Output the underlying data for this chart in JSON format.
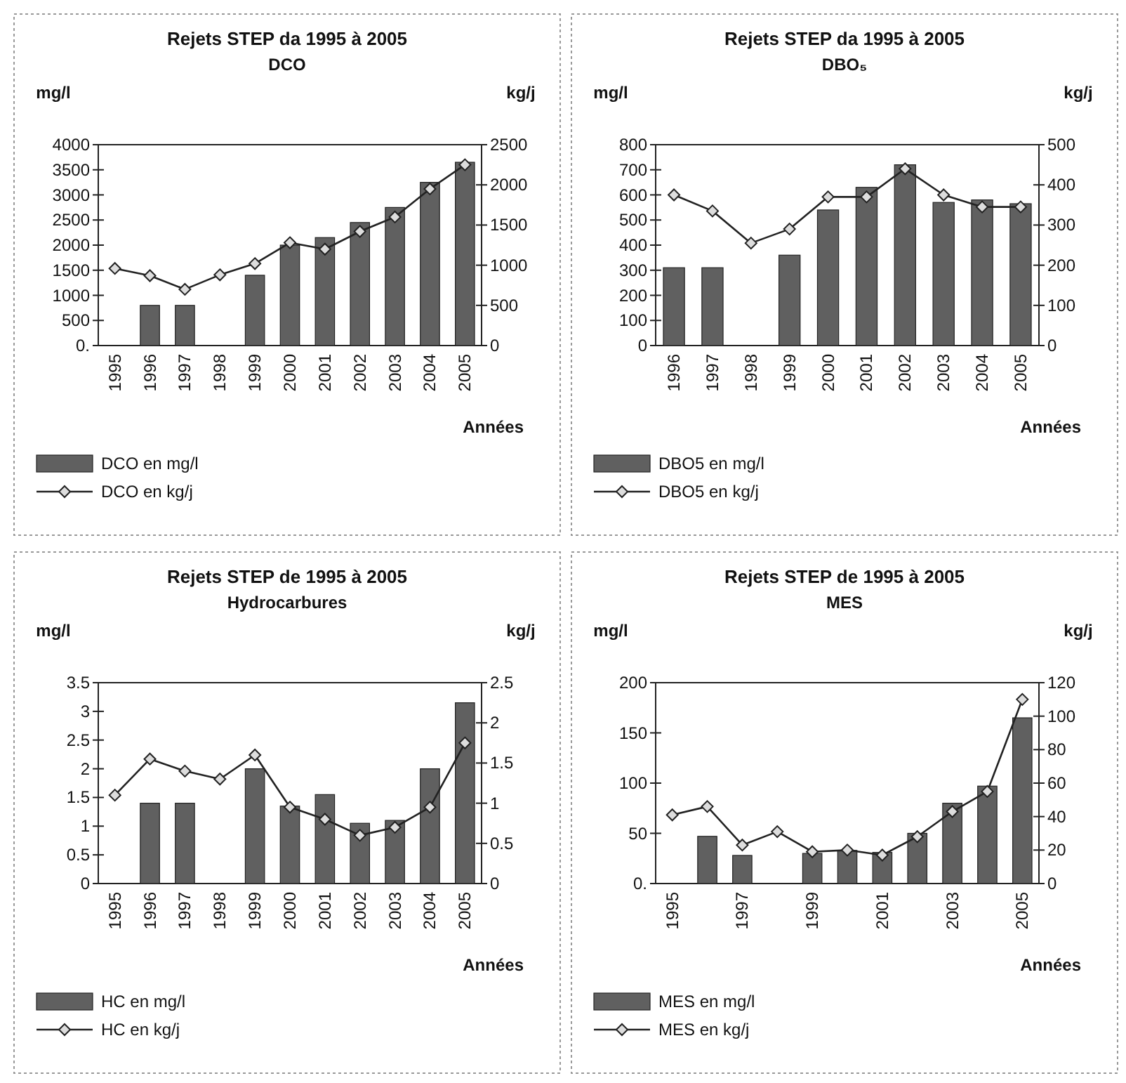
{
  "chart_data": [
    {
      "type": "bar",
      "title": "Rejets STEP da 1995 à 2005",
      "subtitle": "DCO",
      "xlabel": "Années",
      "ylabel": "mg/l",
      "y2label": "kg/j",
      "categories": [
        "1995",
        "1996",
        "1997",
        "1998",
        "1999",
        "2000",
        "2001",
        "2002",
        "2003",
        "2004",
        "2005"
      ],
      "ylim": [
        0,
        4000
      ],
      "yticks": [
        {
          "value": 0,
          "label": "0."
        },
        500,
        1000,
        1500,
        2000,
        2500,
        3000,
        3500,
        4000
      ],
      "y2lim": [
        0,
        2500
      ],
      "y2ticks": [
        0,
        500,
        1000,
        1500,
        2000,
        2500
      ],
      "legend": "bottom left",
      "marker": "diamond",
      "series": [
        {
          "name": "DCO en mg/l",
          "color": "#606060",
          "values": [
            null,
            800,
            800,
            null,
            1400,
            2000,
            2150,
            2450,
            2750,
            3250,
            3650
          ]
        },
        {
          "name": "DCO en kg/j",
          "type": "line",
          "axis": "y2",
          "color": "#222222",
          "values": [
            960,
            870,
            700,
            880,
            1020,
            1280,
            1200,
            1420,
            1600,
            1950,
            2250
          ]
        }
      ]
    },
    {
      "type": "bar",
      "title": "Rejets STEP da 1995 à 2005",
      "subtitle": "DBO₅",
      "xlabel": "Années",
      "ylabel": "mg/l",
      "y2label": "kg/j",
      "categories": [
        "1996",
        "1997",
        "1998",
        "1999",
        "2000",
        "2001",
        "2002",
        "2003",
        "2004",
        "2005"
      ],
      "ylim": [
        0,
        800
      ],
      "yticks": [
        0,
        100,
        200,
        300,
        400,
        500,
        600,
        700,
        800
      ],
      "y2lim": [
        0,
        500
      ],
      "y2ticks": [
        0,
        100,
        200,
        300,
        400,
        500
      ],
      "legend": "bottom left",
      "marker": "diamond",
      "series": [
        {
          "name": "DBO5 en mg/l",
          "color": "#606060",
          "values": [
            310,
            310,
            null,
            360,
            540,
            630,
            720,
            570,
            580,
            565
          ]
        },
        {
          "name": "DBO5 en kg/j",
          "type": "line",
          "axis": "y2",
          "color": "#222222",
          "values": [
            375,
            335,
            255,
            290,
            370,
            370,
            440,
            375,
            345,
            345
          ]
        }
      ]
    },
    {
      "type": "bar",
      "title": "Rejets STEP de 1995 à 2005",
      "subtitle": "Hydrocarbures",
      "xlabel": "Années",
      "ylabel": "mg/l",
      "y2label": "kg/j",
      "categories": [
        "1995",
        "1996",
        "1997",
        "1998",
        "1999",
        "2000",
        "2001",
        "2002",
        "2003",
        "2004",
        "2005"
      ],
      "ylim": [
        0,
        3.5
      ],
      "yticks": [
        0,
        0.5,
        1,
        1.5,
        2,
        2.5,
        3,
        3.5
      ],
      "y2lim": [
        0,
        2.5
      ],
      "y2ticks": [
        0,
        0.5,
        1,
        1.5,
        2,
        2.5
      ],
      "legend": "bottom left",
      "marker": "diamond",
      "series": [
        {
          "name": "HC en mg/l",
          "color": "#606060",
          "values": [
            null,
            1.4,
            1.4,
            null,
            2.0,
            1.35,
            1.55,
            1.05,
            1.1,
            2.0,
            3.15
          ]
        },
        {
          "name": "HC en kg/j",
          "type": "line",
          "axis": "y2",
          "color": "#222222",
          "values": [
            1.1,
            1.55,
            1.4,
            1.3,
            1.6,
            0.95,
            0.8,
            0.6,
            0.7,
            0.95,
            1.75
          ]
        }
      ]
    },
    {
      "type": "bar",
      "title": "Rejets STEP de 1995 à 2005",
      "subtitle": "MES",
      "xlabel": "Années",
      "ylabel": "mg/l",
      "y2label": "kg/j",
      "categories": [
        "1995",
        null,
        "1997",
        null,
        "1999",
        null,
        "2001",
        null,
        "2003",
        null,
        "2005"
      ],
      "ylim": [
        0,
        200
      ],
      "yticks": [
        {
          "value": 0,
          "label": "0."
        },
        50,
        100,
        150,
        200
      ],
      "y2lim": [
        0,
        120
      ],
      "y2ticks": [
        0,
        20,
        40,
        60,
        80,
        100,
        120
      ],
      "legend": "bottom left",
      "marker": "diamond",
      "series": [
        {
          "name": "MES en mg/l",
          "color": "#606060",
          "values": [
            null,
            47,
            28,
            null,
            30,
            33,
            31,
            50,
            80,
            97,
            165
          ]
        },
        {
          "name": "MES en kg/j",
          "type": "line",
          "axis": "y2",
          "color": "#222222",
          "values": [
            41,
            46,
            23,
            31,
            19,
            20,
            17,
            28,
            43,
            55,
            110
          ]
        }
      ]
    }
  ]
}
